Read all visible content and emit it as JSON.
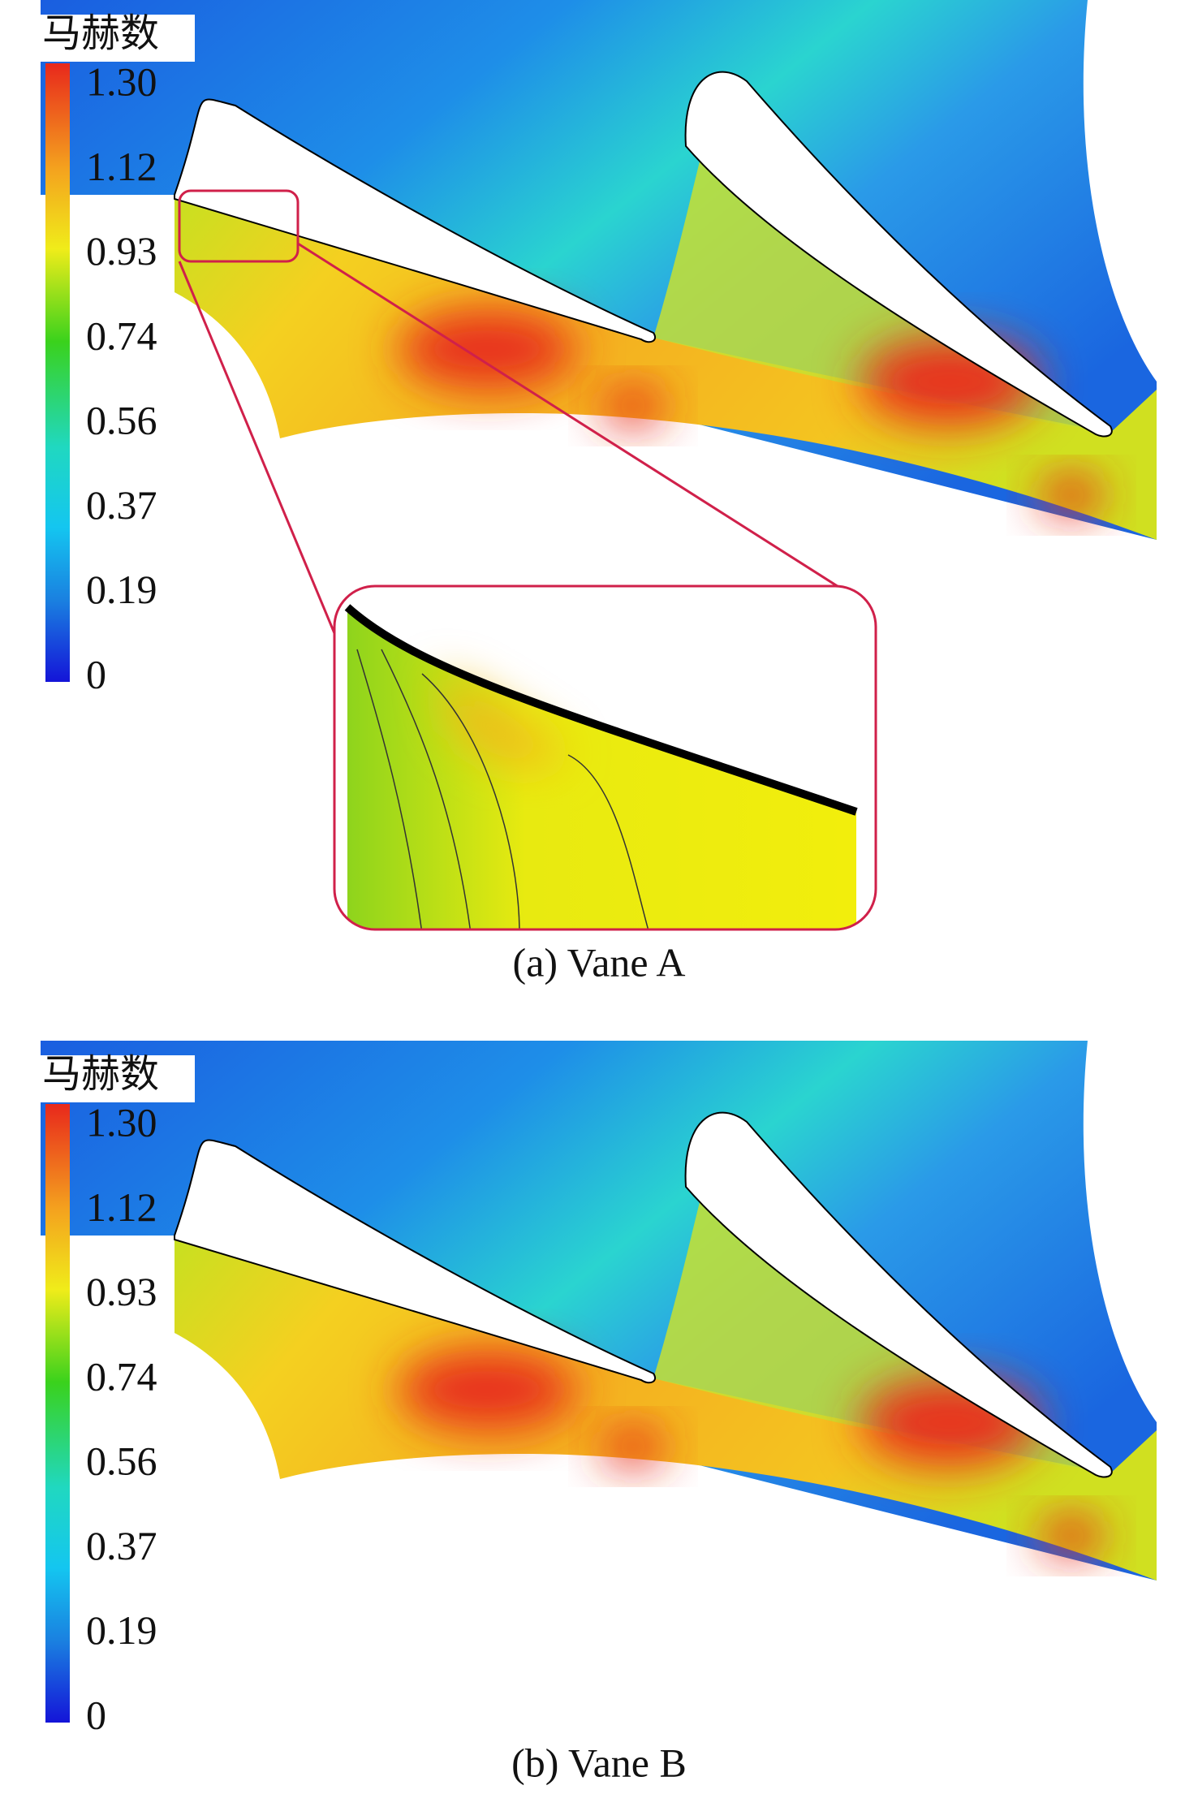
{
  "panels": [
    {
      "legend_title": "马赫数",
      "colorbar_labels": [
        "1.30",
        "1.12",
        "0.93",
        "0.74",
        "0.56",
        "0.37",
        "0.19",
        "0"
      ],
      "caption": "(a) Vane A"
    },
    {
      "legend_title": "马赫数",
      "colorbar_labels": [
        "1.30",
        "1.12",
        "0.93",
        "0.74",
        "0.56",
        "0.37",
        "0.19",
        "0"
      ],
      "caption": "(b) Vane B"
    }
  ]
}
